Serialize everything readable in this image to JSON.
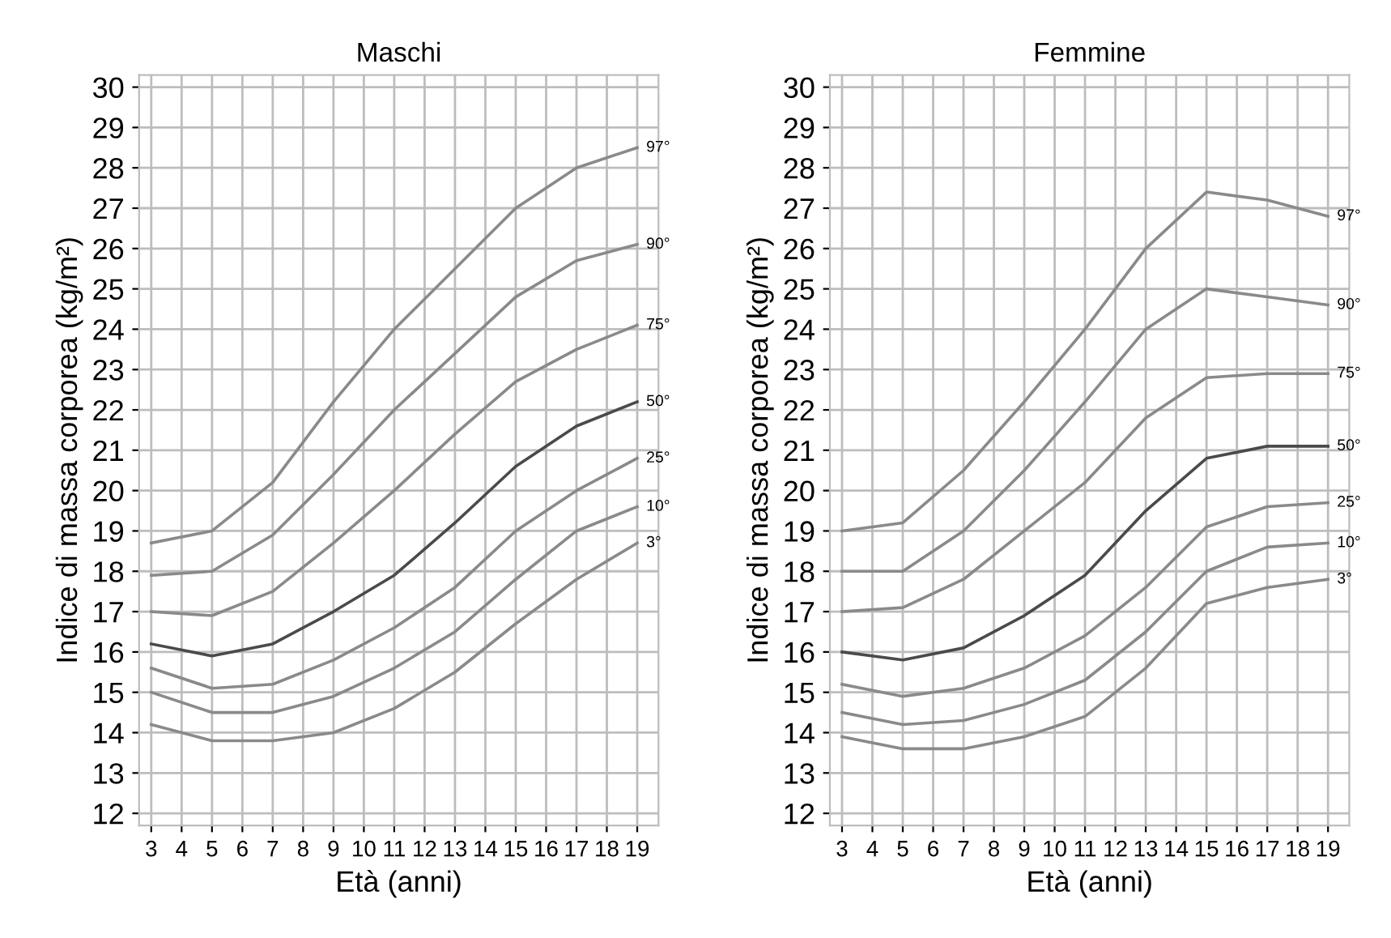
{
  "chart_data": [
    {
      "type": "line",
      "title": "Maschi",
      "xlabel": "Età (anni)",
      "ylabel": "Indice di massa corporea (kg/m²)",
      "grid": true,
      "legend": false,
      "x": [
        3,
        5,
        7,
        9,
        11,
        13,
        15,
        17,
        19
      ],
      "xlim": [
        2.6,
        19.7
      ],
      "ylim": [
        11.7,
        30.3
      ],
      "xticks": [
        3,
        4,
        5,
        6,
        7,
        8,
        9,
        10,
        11,
        12,
        13,
        14,
        15,
        16,
        17,
        18,
        19
      ],
      "yticks": [
        12,
        13,
        14,
        15,
        16,
        17,
        18,
        19,
        20,
        21,
        22,
        23,
        24,
        25,
        26,
        27,
        28,
        29,
        30
      ],
      "series": [
        {
          "name": "97°",
          "color": "#8a8a8a",
          "values": [
            18.7,
            19.0,
            20.2,
            22.2,
            24.0,
            25.5,
            27.0,
            28.0,
            28.5
          ]
        },
        {
          "name": "90°",
          "color": "#8a8a8a",
          "values": [
            17.9,
            18.0,
            18.9,
            20.4,
            22.0,
            23.4,
            24.8,
            25.7,
            26.1
          ]
        },
        {
          "name": "75°",
          "color": "#8a8a8a",
          "values": [
            17.0,
            16.9,
            17.5,
            18.7,
            20.0,
            21.4,
            22.7,
            23.5,
            24.1
          ]
        },
        {
          "name": "50°",
          "color": "#4a4a4a",
          "values": [
            16.2,
            15.9,
            16.2,
            17.0,
            17.9,
            19.2,
            20.6,
            21.6,
            22.2
          ]
        },
        {
          "name": "25°",
          "color": "#8a8a8a",
          "values": [
            15.6,
            15.1,
            15.2,
            15.8,
            16.6,
            17.6,
            19.0,
            20.0,
            20.8
          ]
        },
        {
          "name": "10°",
          "color": "#8a8a8a",
          "values": [
            15.0,
            14.5,
            14.5,
            14.9,
            15.6,
            16.5,
            17.8,
            19.0,
            19.6
          ]
        },
        {
          "name": "3°",
          "color": "#8a8a8a",
          "values": [
            14.2,
            13.8,
            13.8,
            14.0,
            14.6,
            15.5,
            16.7,
            17.8,
            18.7
          ]
        }
      ]
    },
    {
      "type": "line",
      "title": "Femmine",
      "xlabel": "Età (anni)",
      "ylabel": "Indice di massa corporea (kg/m²)",
      "grid": true,
      "legend": false,
      "x": [
        3,
        5,
        7,
        9,
        11,
        13,
        15,
        17,
        19
      ],
      "xlim": [
        2.6,
        19.7
      ],
      "ylim": [
        11.7,
        30.3
      ],
      "xticks": [
        3,
        4,
        5,
        6,
        7,
        8,
        9,
        10,
        11,
        12,
        13,
        14,
        15,
        16,
        17,
        18,
        19
      ],
      "yticks": [
        12,
        13,
        14,
        15,
        16,
        17,
        18,
        19,
        20,
        21,
        22,
        23,
        24,
        25,
        26,
        27,
        28,
        29,
        30
      ],
      "series": [
        {
          "name": "97°",
          "color": "#8a8a8a",
          "values": [
            19.0,
            19.2,
            20.5,
            22.2,
            24.0,
            26.0,
            27.4,
            27.2,
            26.8
          ]
        },
        {
          "name": "90°",
          "color": "#8a8a8a",
          "values": [
            18.0,
            18.0,
            19.0,
            20.5,
            22.2,
            24.0,
            25.0,
            24.8,
            24.6
          ]
        },
        {
          "name": "75°",
          "color": "#8a8a8a",
          "values": [
            17.0,
            17.1,
            17.8,
            19.0,
            20.2,
            21.8,
            22.8,
            22.9,
            22.9
          ]
        },
        {
          "name": "50°",
          "color": "#4a4a4a",
          "values": [
            16.0,
            15.8,
            16.1,
            16.9,
            17.9,
            19.5,
            20.8,
            21.1,
            21.1
          ]
        },
        {
          "name": "25°",
          "color": "#8a8a8a",
          "values": [
            15.2,
            14.9,
            15.1,
            15.6,
            16.4,
            17.6,
            19.1,
            19.6,
            19.7
          ]
        },
        {
          "name": "10°",
          "color": "#8a8a8a",
          "values": [
            14.5,
            14.2,
            14.3,
            14.7,
            15.3,
            16.5,
            18.0,
            18.6,
            18.7
          ]
        },
        {
          "name": "3°",
          "color": "#8a8a8a",
          "values": [
            13.9,
            13.6,
            13.6,
            13.9,
            14.4,
            15.6,
            17.2,
            17.6,
            17.8
          ]
        }
      ]
    }
  ]
}
